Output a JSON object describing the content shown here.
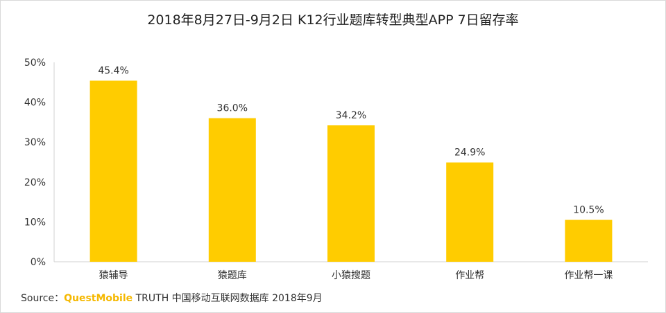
{
  "source": {
    "prefix": "Source：",
    "brand": "QuestMobile",
    "text": "TRUTH 中国移动互联网数据库 2018年9月"
  },
  "chart_data": {
    "type": "bar",
    "title": "2018年8月27日-9月2日 K12行业题库转型典型APP 7日留存率",
    "categories": [
      "猿辅导",
      "猿题库",
      "小猿搜题",
      "作业帮",
      "作业帮一课"
    ],
    "values": [
      45.4,
      36.0,
      34.2,
      24.9,
      10.5
    ],
    "data_labels": [
      "45.4%",
      "36.0%",
      "34.2%",
      "24.9%",
      "10.5%"
    ],
    "yticks": [
      "0%",
      "10%",
      "20%",
      "30%",
      "40%",
      "50%"
    ],
    "ylim": [
      0,
      50
    ],
    "bar_color": "#ffcc00",
    "grid": false,
    "xlabel": "",
    "ylabel": ""
  }
}
